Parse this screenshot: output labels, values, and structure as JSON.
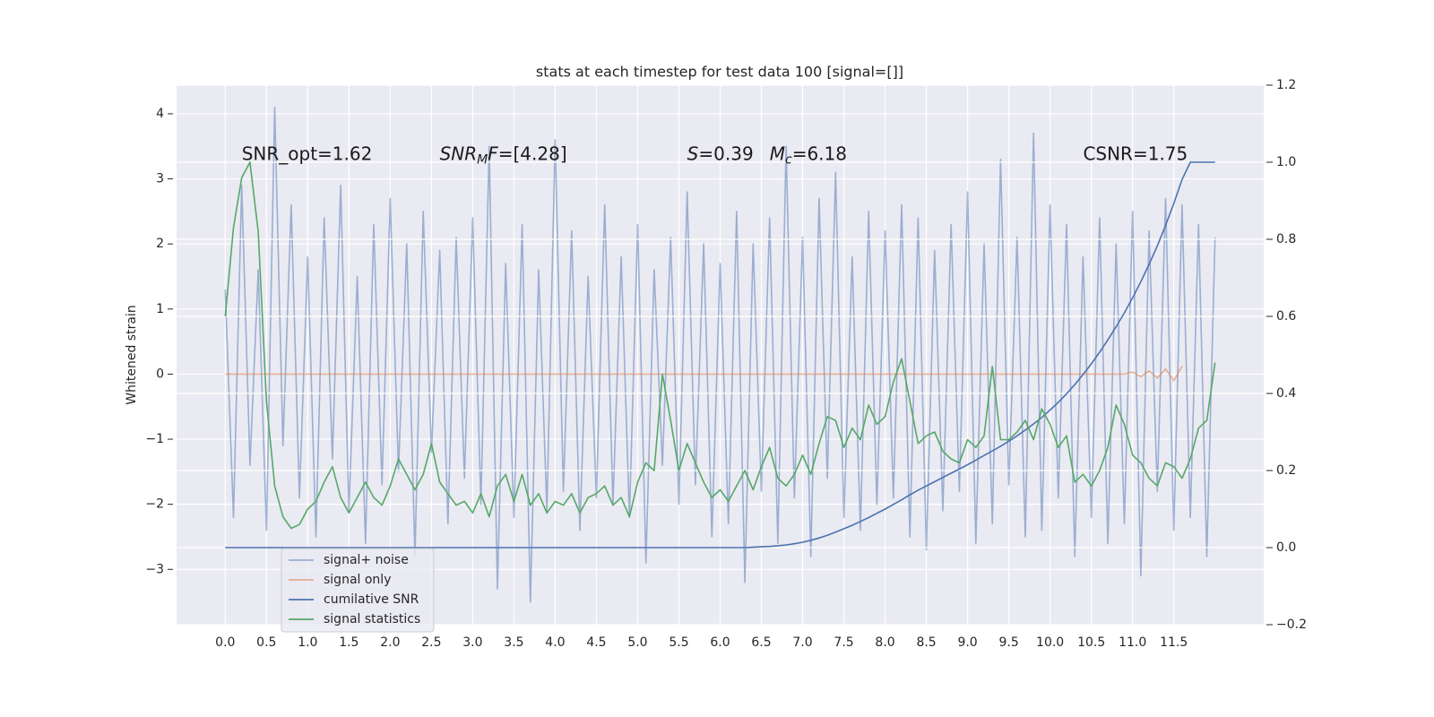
{
  "chart_data": {
    "type": "line",
    "title": "stats at each timestep for test data 100 [signal=[]]",
    "ylabel": "Whitened strain",
    "grid": true,
    "background": "#eaeaf2",
    "legend": "lower left",
    "xlim": [
      -0.59,
      12.59
    ],
    "ylim": [
      -3.85,
      4.44
    ],
    "y2lim": [
      -0.2,
      1.2
    ],
    "xticks": [
      {
        "value": 0,
        "label": "0.0"
      },
      0.5,
      {
        "value": 1,
        "label": "1.0"
      },
      1.5,
      {
        "value": 2,
        "label": "2.0"
      },
      2.5,
      {
        "value": 3,
        "label": "3.0"
      },
      3.5,
      {
        "value": 4,
        "label": "4.0"
      },
      4.5,
      {
        "value": 5,
        "label": "5.0"
      },
      5.5,
      {
        "value": 6,
        "label": "6.0"
      },
      6.5,
      {
        "value": 7,
        "label": "7.0"
      },
      7.5,
      {
        "value": 8,
        "label": "8.0"
      },
      8.5,
      {
        "value": 9,
        "label": "9.0"
      },
      9.5,
      {
        "value": 10,
        "label": "10.0"
      },
      10.5,
      {
        "value": 11,
        "label": "11.0"
      },
      11.5
    ],
    "yticks": [
      {
        "value": -3,
        "label": "−3"
      },
      {
        "value": -2,
        "label": "−2"
      },
      {
        "value": -1,
        "label": "−1"
      },
      0,
      1,
      2,
      3,
      4
    ],
    "y2ticks": [
      {
        "value": -0.2,
        "label": "−0.2"
      },
      {
        "value": 0,
        "label": "0.0"
      },
      0.2,
      0.4,
      0.6,
      0.8,
      {
        "value": 1,
        "label": "1.0"
      },
      1.2
    ],
    "x": [
      0,
      0.1,
      0.2,
      0.3,
      0.4,
      0.5,
      0.6,
      0.7,
      0.8,
      0.9,
      1,
      1.1,
      1.2,
      1.3,
      1.4,
      1.5,
      1.6,
      1.7,
      1.8,
      1.9,
      2,
      2.1,
      2.2,
      2.3,
      2.4,
      2.5,
      2.6,
      2.7,
      2.8,
      2.9,
      3,
      3.1,
      3.2,
      3.3,
      3.4,
      3.5,
      3.6,
      3.7,
      3.8,
      3.9,
      4,
      4.1,
      4.2,
      4.3,
      4.4,
      4.5,
      4.6,
      4.7,
      4.8,
      4.9,
      5,
      5.1,
      5.2,
      5.3,
      5.4,
      5.5,
      5.6,
      5.7,
      5.8,
      5.9,
      6,
      6.1,
      6.2,
      6.3,
      6.4,
      6.5,
      6.6,
      6.7,
      6.8,
      6.9,
      7,
      7.1,
      7.2,
      7.3,
      7.4,
      7.5,
      7.6,
      7.7,
      7.8,
      7.9,
      8,
      8.1,
      8.2,
      8.3,
      8.4,
      8.5,
      8.6,
      8.7,
      8.8,
      8.9,
      9,
      9.1,
      9.2,
      9.3,
      9.4,
      9.5,
      9.6,
      9.7,
      9.8,
      9.9,
      10,
      10.1,
      10.2,
      10.3,
      10.4,
      10.5,
      10.6,
      10.7,
      10.8,
      10.9,
      11,
      11.1,
      11.2,
      11.3,
      11.4,
      11.5,
      11.6,
      11.7,
      11.8,
      11.9,
      12
    ],
    "series": [
      {
        "name": "signal+ noise",
        "color": "#4c72b0",
        "alpha": 0.5,
        "values": [
          1.3,
          -2.2,
          2.9,
          -1.4,
          1.6,
          -2.4,
          4.1,
          -1.1,
          2.6,
          -1.9,
          1.8,
          -2.5,
          2.4,
          -1.3,
          2.9,
          -2.1,
          1.5,
          -2.6,
          2.3,
          -1.7,
          2.7,
          -1.5,
          2.0,
          -2.8,
          2.5,
          -1.2,
          1.9,
          -2.3,
          2.1,
          -1.6,
          2.4,
          -2.0,
          3.5,
          -3.3,
          1.7,
          -2.2,
          2.3,
          -3.5,
          1.6,
          -2.1,
          3.6,
          -1.8,
          2.2,
          -2.4,
          1.5,
          -1.9,
          2.6,
          -2.0,
          1.8,
          -2.2,
          2.3,
          -2.9,
          1.6,
          -1.4,
          2.1,
          -2.0,
          2.8,
          -1.7,
          2.0,
          -2.5,
          1.7,
          -2.3,
          2.5,
          -3.2,
          2.0,
          -1.8,
          2.4,
          -2.6,
          3.5,
          -1.9,
          2.1,
          -2.8,
          2.7,
          -1.6,
          3.1,
          -2.2,
          1.8,
          -2.4,
          2.5,
          -2.0,
          2.2,
          -1.9,
          2.6,
          -2.5,
          2.4,
          -2.7,
          1.9,
          -2.1,
          2.3,
          -1.8,
          2.8,
          -2.6,
          2.0,
          -2.3,
          3.3,
          -1.7,
          2.1,
          -2.5,
          3.7,
          -2.4,
          2.6,
          -1.9,
          2.3,
          -2.8,
          1.8,
          -2.2,
          2.4,
          -2.6,
          2.0,
          -2.3,
          2.5,
          -3.1,
          2.2,
          -1.8,
          2.7,
          -2.4,
          2.6,
          -2.2,
          2.3,
          -2.8,
          2.1
        ]
      },
      {
        "name": "signal only",
        "color": "#dd8452",
        "alpha": 0.6,
        "values": [
          0,
          0,
          0,
          0,
          0,
          0,
          0,
          0,
          0,
          0,
          0,
          0,
          0,
          0,
          0,
          0,
          0,
          0,
          0,
          0,
          0,
          0,
          0,
          0,
          0,
          0,
          0,
          0,
          0,
          0,
          0,
          0,
          0,
          0,
          0,
          0,
          0,
          0,
          0,
          0,
          0,
          0,
          0,
          0,
          0,
          0,
          0,
          0,
          0,
          0,
          0,
          0,
          0,
          0,
          0,
          0,
          0,
          0,
          0,
          0,
          0,
          0,
          0,
          0,
          0,
          0,
          0,
          0,
          0,
          0,
          0,
          0,
          0,
          0,
          0,
          0,
          0,
          0,
          0,
          0,
          0,
          0,
          0,
          0,
          0,
          0,
          0,
          0,
          0,
          0,
          0,
          0,
          0,
          0,
          0,
          0,
          0,
          0,
          0,
          0,
          0,
          0,
          0,
          0,
          0,
          0,
          0,
          0,
          0,
          0,
          0.03,
          -0.04,
          0.05,
          -0.06,
          0.08,
          -0.1,
          0.12,
          null,
          null,
          null,
          null
        ]
      },
      {
        "name": "cumilative SNR",
        "color": "#4c72b0",
        "alpha": 1,
        "axis": "y2",
        "values": [
          0,
          0,
          0,
          0,
          0,
          0,
          0,
          0,
          0,
          0,
          0,
          0,
          0,
          0,
          0,
          0,
          0,
          0,
          0,
          0,
          0,
          0,
          0,
          0,
          0,
          0,
          0,
          0,
          0,
          0,
          0,
          0,
          0,
          0,
          0,
          0,
          0,
          0,
          0,
          0,
          0,
          0,
          0,
          0,
          0,
          0,
          0,
          0,
          0,
          0,
          0,
          0,
          0,
          0,
          0,
          0,
          0,
          0,
          0,
          0,
          0,
          0,
          0,
          0,
          0.001,
          0.002,
          0.003,
          0.005,
          0.007,
          0.01,
          0.014,
          0.019,
          0.025,
          0.032,
          0.04,
          0.049,
          0.058,
          0.068,
          0.078,
          0.089,
          0.1,
          0.112,
          0.124,
          0.137,
          0.149,
          0.16,
          0.171,
          0.182,
          0.193,
          0.204,
          0.215,
          0.227,
          0.239,
          0.251,
          0.263,
          0.276,
          0.29,
          0.305,
          0.321,
          0.338,
          0.357,
          0.377,
          0.399,
          0.423,
          0.449,
          0.477,
          0.507,
          0.539,
          0.573,
          0.609,
          0.648,
          0.69,
          0.735,
          0.783,
          0.836,
          0.893,
          0.955,
          1,
          1,
          1,
          1
        ]
      },
      {
        "name": "signal statistics",
        "color": "#55a868",
        "alpha": 1,
        "axis": "y2",
        "values": [
          0.6,
          0.83,
          0.96,
          1.0,
          0.82,
          0.38,
          0.16,
          0.08,
          0.05,
          0.06,
          0.1,
          0.12,
          0.17,
          0.21,
          0.13,
          0.09,
          0.13,
          0.17,
          0.13,
          0.11,
          0.16,
          0.23,
          0.19,
          0.15,
          0.19,
          0.27,
          0.17,
          0.14,
          0.11,
          0.12,
          0.09,
          0.14,
          0.08,
          0.16,
          0.19,
          0.12,
          0.19,
          0.11,
          0.14,
          0.09,
          0.12,
          0.11,
          0.14,
          0.09,
          0.13,
          0.14,
          0.16,
          0.11,
          0.13,
          0.08,
          0.17,
          0.22,
          0.2,
          0.45,
          0.33,
          0.2,
          0.27,
          0.22,
          0.17,
          0.13,
          0.15,
          0.12,
          0.16,
          0.2,
          0.15,
          0.21,
          0.26,
          0.18,
          0.16,
          0.19,
          0.24,
          0.19,
          0.27,
          0.34,
          0.33,
          0.26,
          0.31,
          0.28,
          0.37,
          0.32,
          0.34,
          0.43,
          0.49,
          0.38,
          0.27,
          0.29,
          0.3,
          0.25,
          0.23,
          0.22,
          0.28,
          0.26,
          0.29,
          0.47,
          0.28,
          0.28,
          0.3,
          0.33,
          0.28,
          0.36,
          0.32,
          0.26,
          0.29,
          0.17,
          0.19,
          0.16,
          0.2,
          0.26,
          0.37,
          0.32,
          0.24,
          0.22,
          0.18,
          0.16,
          0.22,
          0.21,
          0.18,
          0.23,
          0.31,
          0.33,
          0.48
        ]
      }
    ],
    "annotations": [
      {
        "x": 0.2,
        "y": 3.37,
        "parts": [
          {
            "text": "SNR_opt=1.62"
          }
        ]
      },
      {
        "x": 2.6,
        "y": 3.37,
        "parts": [
          {
            "text": "SNR",
            "style": "italic"
          },
          {
            "text": "M",
            "style": "italic",
            "sub": true
          },
          {
            "text": "F",
            "style": "italic"
          },
          {
            "text": "=[4.28]"
          }
        ]
      },
      {
        "x": 5.6,
        "y": 3.37,
        "parts": [
          {
            "text": "S",
            "style": "italic"
          },
          {
            "text": "=0.39"
          }
        ]
      },
      {
        "x": 6.6,
        "y": 3.37,
        "parts": [
          {
            "text": "M",
            "style": "italic"
          },
          {
            "text": "c",
            "style": "italic",
            "sub": true
          },
          {
            "text": "=6.18"
          }
        ]
      },
      {
        "x": 10.4,
        "y": 3.37,
        "parts": [
          {
            "text": "CSNR=1.75"
          }
        ]
      }
    ]
  }
}
